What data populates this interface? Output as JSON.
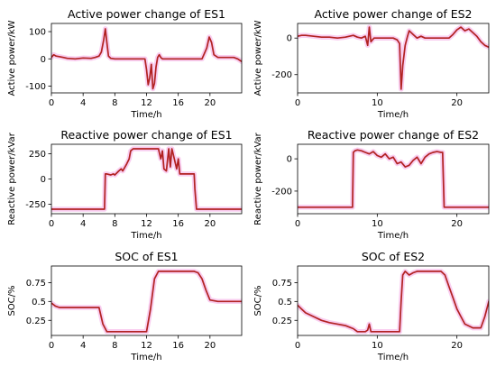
{
  "figure": {
    "line_color": "#b22222",
    "glow_color": "#f4a6e4"
  },
  "chart_data": [
    {
      "type": "line",
      "title": "Active power change of ES1",
      "xlabel": "Time/h",
      "ylabel": "Active power/kW",
      "xlim": [
        0,
        24
      ],
      "ylim": [
        -125,
        130
      ],
      "xticks": [
        0,
        4,
        8,
        12,
        16,
        20
      ],
      "yticks": [
        -100,
        0,
        100
      ],
      "series": [
        {
          "x": [
            0,
            0.3,
            0.6,
            1,
            1.5,
            2,
            3,
            4,
            5,
            5.5,
            6,
            6.3,
            6.6,
            6.8,
            7,
            7.2,
            7.5,
            8,
            9,
            10,
            11,
            11.8,
            12,
            12.2,
            12.4,
            12.6,
            12.8,
            13,
            13.2,
            13.4,
            13.6,
            13.8,
            14,
            15,
            16,
            17,
            18,
            19,
            19.3,
            19.6,
            19.9,
            20.2,
            20.5,
            21,
            22,
            23,
            23.5,
            24
          ],
          "y": [
            5,
            15,
            10,
            8,
            5,
            2,
            0,
            3,
            2,
            5,
            10,
            25,
            70,
            110,
            60,
            10,
            2,
            0,
            0,
            0,
            0,
            0,
            -40,
            -95,
            -70,
            -20,
            -110,
            -90,
            -30,
            5,
            15,
            5,
            0,
            0,
            0,
            0,
            0,
            0,
            20,
            40,
            80,
            60,
            15,
            5,
            5,
            5,
            0,
            -10
          ]
        }
      ]
    },
    {
      "type": "line",
      "title": "Active power change of ES2",
      "xlabel": "Time/h",
      "ylabel": "Active power/kW",
      "xlim": [
        0,
        24
      ],
      "ylim": [
        -300,
        80
      ],
      "xticks": [
        0,
        10,
        20
      ],
      "yticks": [
        -200,
        0
      ],
      "series": [
        {
          "x": [
            0,
            0.5,
            1,
            2,
            3,
            4,
            5,
            6,
            7,
            7.5,
            8,
            8.5,
            8.8,
            9,
            9.2,
            9.4,
            9.6,
            10,
            11,
            12,
            12.5,
            12.8,
            13,
            13.2,
            13.5,
            13.8,
            14,
            14.5,
            15,
            15.5,
            16,
            17,
            18,
            19,
            19.5,
            20,
            20.5,
            21,
            21.5,
            22,
            22.5,
            23,
            23.5,
            24
          ],
          "y": [
            10,
            15,
            15,
            10,
            5,
            5,
            0,
            5,
            15,
            5,
            0,
            10,
            -40,
            60,
            -20,
            -10,
            0,
            0,
            0,
            0,
            -10,
            -30,
            -280,
            -150,
            -40,
            10,
            40,
            20,
            0,
            10,
            0,
            0,
            0,
            0,
            20,
            45,
            60,
            40,
            50,
            30,
            10,
            -20,
            -40,
            -50
          ]
        }
      ]
    },
    {
      "type": "line",
      "title": "Reactive power change of ES1",
      "xlabel": "Time/h",
      "ylabel": "Reactive power/kVar",
      "xlim": [
        0,
        24
      ],
      "ylim": [
        -345,
        345
      ],
      "xticks": [
        0,
        4,
        8,
        12,
        16,
        20
      ],
      "yticks": [
        -250,
        0,
        250
      ],
      "series": [
        {
          "x": [
            0,
            2,
            4,
            6,
            6.7,
            6.8,
            7,
            7.5,
            7.8,
            8,
            8.5,
            8.8,
            9,
            9.5,
            9.8,
            10,
            10.3,
            11,
            12,
            13,
            13.5,
            13.8,
            14,
            14.2,
            14.5,
            14.8,
            15,
            15.2,
            15.5,
            15.8,
            16,
            16.2,
            16.5,
            17,
            17.8,
            18,
            18.1,
            18.3,
            19,
            20,
            21,
            22,
            23,
            24
          ],
          "y": [
            -300,
            -300,
            -300,
            -300,
            -300,
            50,
            50,
            40,
            50,
            40,
            80,
            100,
            80,
            150,
            200,
            280,
            300,
            300,
            300,
            300,
            300,
            200,
            280,
            100,
            80,
            300,
            120,
            300,
            200,
            100,
            200,
            50,
            50,
            50,
            50,
            50,
            -100,
            -300,
            -300,
            -300,
            -300,
            -300,
            -300,
            -300
          ]
        }
      ]
    },
    {
      "type": "line",
      "title": "Reactive power change of ES2",
      "xlabel": "Time/h",
      "ylabel": "Reactive power/kVar",
      "xlim": [
        0,
        24
      ],
      "ylim": [
        -340,
        90
      ],
      "xticks": [
        0,
        10,
        20
      ],
      "yticks": [
        -200,
        0
      ],
      "series": [
        {
          "x": [
            0,
            2,
            4,
            6,
            6.9,
            7,
            7.2,
            7.5,
            8,
            8.5,
            9,
            9.5,
            10,
            10.5,
            11,
            11.5,
            12,
            12.5,
            13,
            13.5,
            14,
            14.5,
            15,
            15.5,
            16,
            16.5,
            17,
            17.5,
            18,
            18.2,
            18.4,
            19,
            20,
            21,
            22,
            23,
            24
          ],
          "y": [
            -300,
            -300,
            -300,
            -300,
            -300,
            40,
            50,
            55,
            50,
            40,
            30,
            45,
            20,
            10,
            30,
            0,
            10,
            -30,
            -20,
            -50,
            -40,
            -10,
            10,
            -30,
            10,
            30,
            40,
            45,
            40,
            40,
            -300,
            -300,
            -300,
            -300,
            -300,
            -300,
            -300
          ]
        }
      ]
    },
    {
      "type": "line",
      "title": "SOC of ES1",
      "xlabel": "Time/h",
      "ylabel": "SOC/%",
      "xlim": [
        0,
        24
      ],
      "ylim": [
        0.05,
        0.97
      ],
      "xticks": [
        0,
        4,
        8,
        12,
        16,
        20
      ],
      "yticks": [
        0.25,
        0.5,
        0.75
      ],
      "series": [
        {
          "x": [
            0,
            0.5,
            1,
            2,
            3,
            4,
            5,
            6,
            6.5,
            7,
            8,
            9,
            10,
            11,
            12,
            12.5,
            13,
            13.5,
            14,
            15,
            16,
            17,
            18,
            18.5,
            19,
            19.5,
            20,
            21,
            22,
            23,
            23.5,
            24
          ],
          "y": [
            0.48,
            0.44,
            0.42,
            0.42,
            0.42,
            0.42,
            0.42,
            0.42,
            0.2,
            0.1,
            0.1,
            0.1,
            0.1,
            0.1,
            0.1,
            0.4,
            0.8,
            0.9,
            0.9,
            0.9,
            0.9,
            0.9,
            0.9,
            0.88,
            0.8,
            0.65,
            0.52,
            0.5,
            0.5,
            0.5,
            0.5,
            0.5
          ]
        }
      ]
    },
    {
      "type": "line",
      "title": "SOC of ES2",
      "xlabel": "Time/h",
      "ylabel": "SOC/%",
      "xlim": [
        0,
        24
      ],
      "ylim": [
        0.05,
        0.97
      ],
      "xticks": [
        0,
        10,
        20
      ],
      "yticks": [
        0.25,
        0.5,
        0.75
      ],
      "series": [
        {
          "x": [
            0,
            0.5,
            1,
            2,
            3,
            4,
            5,
            6,
            7,
            7.5,
            8,
            8.5,
            8.8,
            9,
            9.2,
            9.5,
            10,
            11,
            12,
            12.8,
            13,
            13.2,
            13.5,
            14,
            14.5,
            15,
            16,
            17,
            18,
            18.5,
            19,
            19.5,
            20,
            20.5,
            21,
            22,
            23,
            23.5,
            24
          ],
          "y": [
            0.45,
            0.4,
            0.35,
            0.3,
            0.25,
            0.22,
            0.2,
            0.18,
            0.14,
            0.1,
            0.1,
            0.1,
            0.12,
            0.2,
            0.1,
            0.1,
            0.1,
            0.1,
            0.1,
            0.1,
            0.5,
            0.85,
            0.9,
            0.85,
            0.88,
            0.9,
            0.9,
            0.9,
            0.9,
            0.85,
            0.7,
            0.55,
            0.4,
            0.3,
            0.2,
            0.15,
            0.15,
            0.3,
            0.5
          ]
        }
      ]
    }
  ]
}
